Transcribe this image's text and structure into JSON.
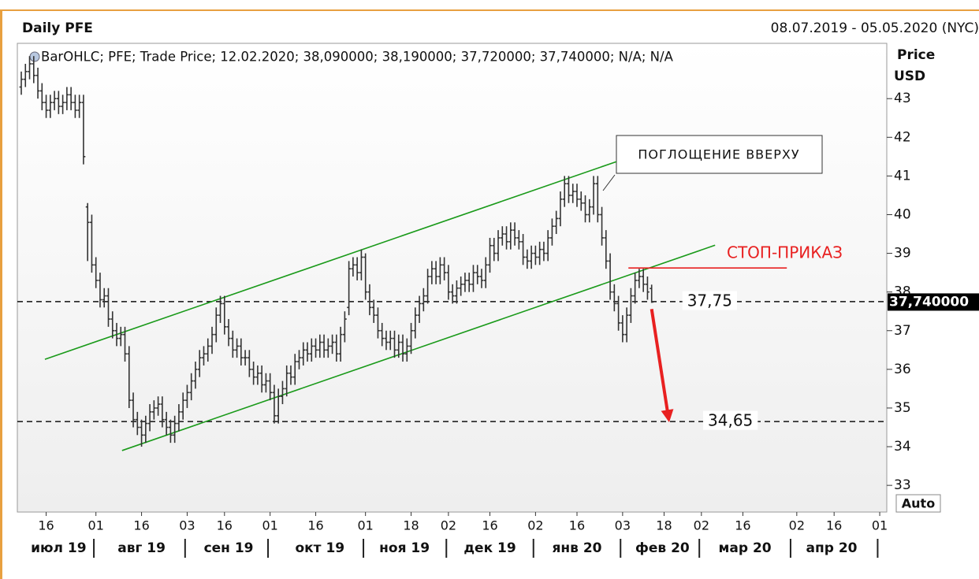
{
  "chart_data": {
    "type": "ohlc",
    "title": "Daily PFE",
    "date_range": "08.07.2019 - 05.05.2020 (NYC)",
    "legend": "BarOHLC; PFE; Trade Price;  12.02.2020; 38,090000; 38,190000; 37,720000; 37,740000; N/A; N/A",
    "y_label": "Price",
    "y_unit": "USD",
    "auto": "Auto",
    "color": "#333333",
    "ylim": [
      32.31,
      44.43
    ],
    "yticks": [
      33,
      34,
      35,
      36,
      37,
      38,
      39,
      40,
      41,
      42,
      43
    ],
    "xlim": [
      -0.95,
      208.7
    ],
    "xticks": [
      {
        "value": 6,
        "label": "16"
      },
      {
        "value": 18,
        "label": "01"
      },
      {
        "value": 29,
        "label": "16"
      },
      {
        "value": 40,
        "label": "03"
      },
      {
        "value": 49,
        "label": "16"
      },
      {
        "value": 60,
        "label": "01"
      },
      {
        "value": 71,
        "label": "16"
      },
      {
        "value": 83,
        "label": "01"
      },
      {
        "value": 94,
        "label": "18"
      },
      {
        "value": 103,
        "label": "02"
      },
      {
        "value": 113,
        "label": "16"
      },
      {
        "value": 124,
        "label": "02"
      },
      {
        "value": 134,
        "label": "16"
      },
      {
        "value": 145,
        "label": "03"
      },
      {
        "value": 155,
        "label": "18"
      },
      {
        "value": 164,
        "label": "02"
      },
      {
        "value": 174,
        "label": "16"
      },
      {
        "value": 187,
        "label": "02"
      },
      {
        "value": 196,
        "label": "16"
      },
      {
        "value": 207,
        "label": "01"
      }
    ],
    "months": [
      {
        "value": 9,
        "label": "июл 19"
      },
      {
        "value": 29,
        "label": "авг 19"
      },
      {
        "value": 50,
        "label": "сен 19"
      },
      {
        "value": 72,
        "label": "окт 19"
      },
      {
        "value": 92.4,
        "label": "ноя 19"
      },
      {
        "value": 113,
        "label": "дек 19"
      },
      {
        "value": 134,
        "label": "янв 20"
      },
      {
        "value": 154.6,
        "label": "фев 20"
      },
      {
        "value": 174.5,
        "label": "мар 20"
      },
      {
        "value": 195.4,
        "label": "апр 20"
      }
    ],
    "month_separators": [
      17.5,
      39.5,
      59.5,
      82.5,
      102.5,
      123.5,
      144.5,
      163.5,
      185.5,
      206.5
    ],
    "last_price": {
      "value": 37.74,
      "label": "37,740000"
    },
    "levels": [
      {
        "value": 37.75,
        "label": "37,75",
        "at": 166
      },
      {
        "value": 34.65,
        "label": "34,65",
        "at": 171
      }
    ],
    "lines": [
      {
        "color": "#1a9a1a",
        "from": [
          5.7,
          36.26
        ],
        "to": [
          143.5,
          41.37
        ]
      },
      {
        "color": "#1a9a1a",
        "from": [
          24.3,
          33.9
        ],
        "to": [
          167.3,
          39.21
        ]
      },
      {
        "color": "#e82020",
        "from": [
          146.4,
          38.62
        ],
        "to": [
          184.6,
          38.62
        ]
      }
    ],
    "arrow": {
      "color": "#e82020",
      "from": [
        152,
        37.56
      ],
      "to": [
        156,
        34.79
      ]
    },
    "stop_label": "СТОП-ПРИКАЗ",
    "callout": "ПОГЛОЩЕНИЕ ВВЕРХУ",
    "bars": [
      [
        43.3,
        43.7,
        43.1,
        43.5
      ],
      [
        43.5,
        43.9,
        43.3,
        43.7
      ],
      [
        43.7,
        44.1,
        43.5,
        43.9
      ],
      [
        43.9,
        44.1,
        43.4,
        43.6
      ],
      [
        43.6,
        43.8,
        43.0,
        43.2
      ],
      [
        43.2,
        43.4,
        42.7,
        42.9
      ],
      [
        42.9,
        43.1,
        42.5,
        42.7
      ],
      [
        42.7,
        43.1,
        42.5,
        42.9
      ],
      [
        42.9,
        43.2,
        42.7,
        43.0
      ],
      [
        43.0,
        43.2,
        42.6,
        42.8
      ],
      [
        42.8,
        43.1,
        42.6,
        42.9
      ],
      [
        42.9,
        43.3,
        42.7,
        43.1
      ],
      [
        43.1,
        43.3,
        42.7,
        42.9
      ],
      [
        42.9,
        43.1,
        42.5,
        42.7
      ],
      [
        42.7,
        43.1,
        42.5,
        42.9
      ],
      [
        42.9,
        43.1,
        41.3,
        41.5
      ],
      [
        40.2,
        40.3,
        38.8,
        39.8
      ],
      [
        39.8,
        40.0,
        38.5,
        38.7
      ],
      [
        38.7,
        38.9,
        38.1,
        38.3
      ],
      [
        38.3,
        38.5,
        37.6,
        37.8
      ],
      [
        37.8,
        38.1,
        37.6,
        37.9
      ],
      [
        37.9,
        38.1,
        37.1,
        37.3
      ],
      [
        37.3,
        37.5,
        36.8,
        37.0
      ],
      [
        37.0,
        37.2,
        36.6,
        36.8
      ],
      [
        36.8,
        37.1,
        36.6,
        36.9
      ],
      [
        36.9,
        37.1,
        36.2,
        36.4
      ],
      [
        36.4,
        36.6,
        35.0,
        35.2
      ],
      [
        35.2,
        35.4,
        34.5,
        34.7
      ],
      [
        34.7,
        34.9,
        34.3,
        34.5
      ],
      [
        34.5,
        34.7,
        34.0,
        34.3
      ],
      [
        34.3,
        34.8,
        34.1,
        34.6
      ],
      [
        34.6,
        35.1,
        34.4,
        34.9
      ],
      [
        34.9,
        35.2,
        34.7,
        35.0
      ],
      [
        35.0,
        35.3,
        34.8,
        35.1
      ],
      [
        35.1,
        35.3,
        34.5,
        34.7
      ],
      [
        34.7,
        34.9,
        34.3,
        34.5
      ],
      [
        34.5,
        34.7,
        34.1,
        34.3
      ],
      [
        34.3,
        34.8,
        34.1,
        34.6
      ],
      [
        34.6,
        35.1,
        34.4,
        34.9
      ],
      [
        34.9,
        35.4,
        34.7,
        35.2
      ],
      [
        35.2,
        35.6,
        35.0,
        35.4
      ],
      [
        35.4,
        35.9,
        35.2,
        35.7
      ],
      [
        35.7,
        36.2,
        35.5,
        36.0
      ],
      [
        36.0,
        36.5,
        35.8,
        36.3
      ],
      [
        36.3,
        36.6,
        36.1,
        36.4
      ],
      [
        36.4,
        36.8,
        36.2,
        36.6
      ],
      [
        36.6,
        37.1,
        36.4,
        36.9
      ],
      [
        36.9,
        37.6,
        36.7,
        37.4
      ],
      [
        37.4,
        37.9,
        37.2,
        37.7
      ],
      [
        37.7,
        37.9,
        36.9,
        37.1
      ],
      [
        37.1,
        37.3,
        36.6,
        36.8
      ],
      [
        36.8,
        37.0,
        36.3,
        36.5
      ],
      [
        36.5,
        36.8,
        36.3,
        36.6
      ],
      [
        36.6,
        36.8,
        36.1,
        36.3
      ],
      [
        36.3,
        36.5,
        36.1,
        36.3
      ],
      [
        36.3,
        36.5,
        35.8,
        36.0
      ],
      [
        36.0,
        36.2,
        35.6,
        35.8
      ],
      [
        35.8,
        36.1,
        35.6,
        35.9
      ],
      [
        35.9,
        36.1,
        35.4,
        35.6
      ],
      [
        35.6,
        35.9,
        35.4,
        35.7
      ],
      [
        35.7,
        35.9,
        35.2,
        35.4
      ],
      [
        35.4,
        35.6,
        34.6,
        34.8
      ],
      [
        34.8,
        35.5,
        34.6,
        35.3
      ],
      [
        35.3,
        35.7,
        35.1,
        35.5
      ],
      [
        35.5,
        36.1,
        35.3,
        35.9
      ],
      [
        35.9,
        36.1,
        35.6,
        35.8
      ],
      [
        35.8,
        36.4,
        35.6,
        36.2
      ],
      [
        36.2,
        36.5,
        36.0,
        36.3
      ],
      [
        36.3,
        36.7,
        36.1,
        36.5
      ],
      [
        36.5,
        36.7,
        36.2,
        36.4
      ],
      [
        36.4,
        36.8,
        36.2,
        36.6
      ],
      [
        36.6,
        36.8,
        36.3,
        36.5
      ],
      [
        36.5,
        36.9,
        36.3,
        36.7
      ],
      [
        36.7,
        36.9,
        36.3,
        36.5
      ],
      [
        36.5,
        36.8,
        36.3,
        36.6
      ],
      [
        36.6,
        36.9,
        36.4,
        36.7
      ],
      [
        36.7,
        36.9,
        36.2,
        36.4
      ],
      [
        36.4,
        37.1,
        36.2,
        36.9
      ],
      [
        36.9,
        37.5,
        36.7,
        37.3
      ],
      [
        37.6,
        38.8,
        37.4,
        38.6
      ],
      [
        38.6,
        38.9,
        38.4,
        38.7
      ],
      [
        38.7,
        38.9,
        38.3,
        38.5
      ],
      [
        38.5,
        39.1,
        38.3,
        38.9
      ],
      [
        38.9,
        39.0,
        37.8,
        38.0
      ],
      [
        38.0,
        38.2,
        37.4,
        37.6
      ],
      [
        37.6,
        37.8,
        37.2,
        37.4
      ],
      [
        37.4,
        37.6,
        36.8,
        37.0
      ],
      [
        37.0,
        37.2,
        36.6,
        36.8
      ],
      [
        36.8,
        37.0,
        36.5,
        36.7
      ],
      [
        36.7,
        37.0,
        36.5,
        36.8
      ],
      [
        36.8,
        37.0,
        36.3,
        36.5
      ],
      [
        36.5,
        36.9,
        36.3,
        36.7
      ],
      [
        36.7,
        36.9,
        36.2,
        36.4
      ],
      [
        36.4,
        36.8,
        36.2,
        36.6
      ],
      [
        36.6,
        37.2,
        36.4,
        37.0
      ],
      [
        37.0,
        37.6,
        36.8,
        37.4
      ],
      [
        37.4,
        37.9,
        37.2,
        37.7
      ],
      [
        37.7,
        38.1,
        37.5,
        37.9
      ],
      [
        37.9,
        38.6,
        37.7,
        38.4
      ],
      [
        38.4,
        38.8,
        38.2,
        38.6
      ],
      [
        38.6,
        38.8,
        38.2,
        38.4
      ],
      [
        38.4,
        38.9,
        38.2,
        38.7
      ],
      [
        38.7,
        38.9,
        38.3,
        38.5
      ],
      [
        38.5,
        38.7,
        37.8,
        38.0
      ],
      [
        38.0,
        38.2,
        37.7,
        37.9
      ],
      [
        37.9,
        38.3,
        37.7,
        38.1
      ],
      [
        38.1,
        38.4,
        37.9,
        38.2
      ],
      [
        38.2,
        38.5,
        38.0,
        38.3
      ],
      [
        38.3,
        38.5,
        38.0,
        38.2
      ],
      [
        38.2,
        38.7,
        38.0,
        38.5
      ],
      [
        38.5,
        38.7,
        38.2,
        38.4
      ],
      [
        38.4,
        38.6,
        38.1,
        38.3
      ],
      [
        38.3,
        38.9,
        38.1,
        38.7
      ],
      [
        38.7,
        39.4,
        38.5,
        39.2
      ],
      [
        39.2,
        39.4,
        38.8,
        39.0
      ],
      [
        39.0,
        39.6,
        38.8,
        39.4
      ],
      [
        39.4,
        39.7,
        39.2,
        39.5
      ],
      [
        39.5,
        39.7,
        39.1,
        39.3
      ],
      [
        39.3,
        39.8,
        39.1,
        39.6
      ],
      [
        39.6,
        39.8,
        39.2,
        39.4
      ],
      [
        39.4,
        39.6,
        39.1,
        39.3
      ],
      [
        39.3,
        39.5,
        38.7,
        38.9
      ],
      [
        38.9,
        39.1,
        38.6,
        38.8
      ],
      [
        38.8,
        39.2,
        38.6,
        39.0
      ],
      [
        39.0,
        39.2,
        38.7,
        38.9
      ],
      [
        38.9,
        39.3,
        38.7,
        39.1
      ],
      [
        39.1,
        39.3,
        38.8,
        39.0
      ],
      [
        39.0,
        39.6,
        38.8,
        39.4
      ],
      [
        39.4,
        39.9,
        39.2,
        39.7
      ],
      [
        39.7,
        40.1,
        39.5,
        39.9
      ],
      [
        39.9,
        40.6,
        39.7,
        40.4
      ],
      [
        40.4,
        41.0,
        40.2,
        40.8
      ],
      [
        40.8,
        41.0,
        40.3,
        40.5
      ],
      [
        40.5,
        40.8,
        40.3,
        40.6
      ],
      [
        40.6,
        40.8,
        40.2,
        40.4
      ],
      [
        40.4,
        40.6,
        40.1,
        40.3
      ],
      [
        40.3,
        40.5,
        39.8,
        40.0
      ],
      [
        40.0,
        40.4,
        39.8,
        40.2
      ],
      [
        40.2,
        41.0,
        40.0,
        40.8
      ],
      [
        40.8,
        41.0,
        39.8,
        40.0
      ],
      [
        40.0,
        40.2,
        39.2,
        39.4
      ],
      [
        39.4,
        39.6,
        38.6,
        38.8
      ],
      [
        38.8,
        39.0,
        37.8,
        38.0
      ],
      [
        38.0,
        38.2,
        37.5,
        37.7
      ],
      [
        37.7,
        37.9,
        37.0,
        37.2
      ],
      [
        37.2,
        37.4,
        36.7,
        36.9
      ],
      [
        36.9,
        37.6,
        36.7,
        37.4
      ],
      [
        37.4,
        38.1,
        37.2,
        37.9
      ],
      [
        37.9,
        38.5,
        37.7,
        38.3
      ],
      [
        38.3,
        38.6,
        38.1,
        38.4
      ],
      [
        38.4,
        38.6,
        38.0,
        38.2
      ],
      [
        38.2,
        38.4,
        37.8,
        38.0
      ],
      [
        38.09,
        38.19,
        37.72,
        37.74
      ]
    ]
  }
}
